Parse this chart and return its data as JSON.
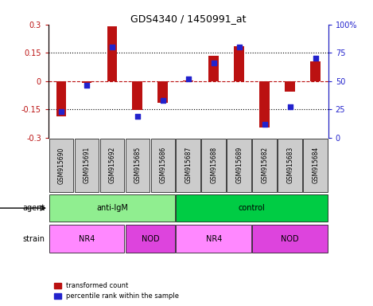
{
  "title": "GDS4340 / 1450991_at",
  "samples": [
    "GSM915690",
    "GSM915691",
    "GSM915692",
    "GSM915685",
    "GSM915686",
    "GSM915687",
    "GSM915688",
    "GSM915689",
    "GSM915682",
    "GSM915683",
    "GSM915684"
  ],
  "red_values": [
    -0.185,
    -0.01,
    0.29,
    -0.155,
    -0.115,
    0.005,
    0.135,
    0.185,
    -0.245,
    -0.055,
    0.105
  ],
  "blue_values": [
    23,
    46,
    80,
    19,
    33,
    52,
    66,
    80,
    12,
    27,
    70
  ],
  "agent_groups": [
    {
      "label": "anti-IgM",
      "start": 0,
      "end": 5,
      "color": "#90EE90"
    },
    {
      "label": "control",
      "start": 5,
      "end": 11,
      "color": "#00CC44"
    }
  ],
  "strain_groups": [
    {
      "label": "NR4",
      "start": 0,
      "end": 3,
      "color": "#FF88FF"
    },
    {
      "label": "NOD",
      "start": 3,
      "end": 5,
      "color": "#DD44DD"
    },
    {
      "label": "NR4",
      "start": 5,
      "end": 8,
      "color": "#FF88FF"
    },
    {
      "label": "NOD",
      "start": 8,
      "end": 11,
      "color": "#DD44DD"
    }
  ],
  "ylim_left": [
    -0.3,
    0.3
  ],
  "ylim_right": [
    0,
    100
  ],
  "yticks_left": [
    -0.3,
    -0.15,
    0,
    0.15,
    0.3
  ],
  "yticks_right": [
    0,
    25,
    50,
    75,
    100
  ],
  "ytick_labels_right": [
    "0",
    "25",
    "50",
    "75",
    "100%"
  ],
  "hlines": [
    -0.15,
    0,
    0.15
  ],
  "red_color": "#BB1111",
  "blue_color": "#2222CC",
  "bar_width": 0.4,
  "dot_size": 40,
  "background_color": "#FFFFFF",
  "label_red": "transformed count",
  "label_blue": "percentile rank within the sample",
  "tick_bg_color": "#CCCCCC",
  "agent_label": "agent",
  "strain_label": "strain"
}
